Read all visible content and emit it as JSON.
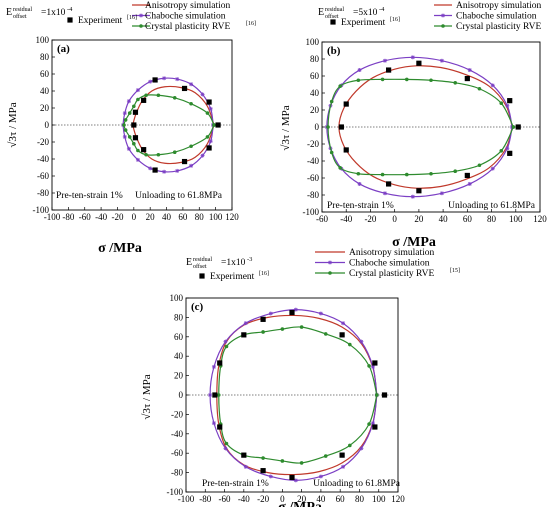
{
  "chart_data": [
    {
      "type": "line",
      "panel_label": "(a)",
      "offset_label": {
        "base": "E",
        "sup": "residual",
        "sub": "offset",
        "value": "=1x10",
        "exp": "-4"
      },
      "xlabel": "σ /MPa",
      "ylabel": "√3τ / MPa",
      "xlim": [
        -100,
        120
      ],
      "ylim": [
        -100,
        100
      ],
      "xticks": [
        "-100",
        "-80",
        "-60",
        "-40",
        "-20",
        "0",
        "20",
        "40",
        "60",
        "80",
        "100",
        "120"
      ],
      "yticks": [
        "-100",
        "-80",
        "-60",
        "-40",
        "-20",
        "0",
        "20",
        "40",
        "60",
        "80",
        "100"
      ],
      "annotations": [
        "Pre-ten-strain 1%",
        "Unloading to 61.8MPa"
      ],
      "legend": [
        {
          "name": "Anisotropy simulation",
          "marker": "none"
        },
        {
          "name": "Chaboche simulation",
          "marker": "star"
        },
        {
          "name": "Experiment",
          "sup": "[16]",
          "marker": "square"
        },
        {
          "name": "Crystal plasticity RVE",
          "sup": "[16]",
          "marker": "circle"
        }
      ],
      "series": [
        {
          "name": "Anisotropy simulation",
          "color": "#c0392b",
          "marker": "none",
          "x": [
            98,
            90,
            75,
            58,
            38,
            22,
            10,
            3,
            0,
            -1,
            0,
            3,
            10,
            22,
            38,
            58,
            75,
            90,
            98
          ],
          "y": [
            0,
            22,
            38,
            44,
            45,
            40,
            28,
            14,
            5,
            0,
            -5,
            -14,
            -28,
            -40,
            -45,
            -44,
            -38,
            -22,
            0
          ]
        },
        {
          "name": "Chaboche simulation",
          "color": "#7b3fc4",
          "marker": "star",
          "x": [
            97,
            94,
            84,
            70,
            53,
            37,
            20,
            5,
            -6,
            -11,
            -13,
            -11,
            -6,
            5,
            20,
            37,
            53,
            70,
            84,
            94,
            97
          ],
          "y": [
            0,
            19,
            36,
            48,
            54,
            55,
            51,
            41,
            28,
            14,
            0,
            -14,
            -28,
            -41,
            -51,
            -55,
            -54,
            -48,
            -36,
            -19,
            0
          ]
        },
        {
          "name": "Crystal plasticity RVE",
          "color": "#2e8b2e",
          "marker": "circle",
          "x": [
            98,
            90,
            70,
            50,
            30,
            15,
            5,
            0,
            -5,
            -10,
            -12,
            -10,
            -5,
            0,
            5,
            15,
            30,
            50,
            70,
            90,
            98
          ],
          "y": [
            0,
            14,
            25,
            32,
            35,
            35,
            30,
            22,
            14,
            6,
            0,
            -6,
            -14,
            -22,
            -30,
            -35,
            -35,
            -32,
            -25,
            -14,
            0
          ]
        },
        {
          "name": "Experiment",
          "color": "#000000",
          "marker": "square",
          "x": [
            103,
            92,
            62,
            26,
            12,
            2,
            0,
            2,
            12,
            26,
            62,
            92
          ],
          "y": [
            0,
            27,
            43,
            53,
            29,
            15,
            0,
            -15,
            -29,
            -53,
            -43,
            -27
          ]
        }
      ]
    },
    {
      "type": "line",
      "panel_label": "(b)",
      "offset_label": {
        "base": "E",
        "sup": "residual",
        "sub": "offset",
        "value": "=5x10",
        "exp": "-4"
      },
      "xlabel": "σ /MPa",
      "ylabel": "√3τ / MPa",
      "xlim": [
        -60,
        120
      ],
      "ylim": [
        -100,
        100
      ],
      "xticks": [
        "-60",
        "-40",
        "-20",
        "0",
        "20",
        "40",
        "60",
        "80",
        "100",
        "120"
      ],
      "yticks": [
        "-100",
        "-80",
        "-60",
        "-40",
        "-20",
        "0",
        "20",
        "40",
        "60",
        "80",
        "100"
      ],
      "annotations": [
        "Pre-ten-strain 1%",
        "Unloading to 61.8MPa"
      ],
      "legend": [
        {
          "name": "Anisotropy simulation",
          "marker": "none"
        },
        {
          "name": "Chaboche simulation",
          "marker": "star"
        },
        {
          "name": "Experiment",
          "sup": "[16]",
          "marker": "square"
        },
        {
          "name": "Crystal plasticity RVE",
          "sup": "[16]",
          "marker": "circle"
        }
      ],
      "series": [
        {
          "name": "Anisotropy simulation",
          "color": "#c0392b",
          "marker": "none",
          "x": [
            97,
            92,
            78,
            58,
            38,
            18,
            0,
            -18,
            -32,
            -42,
            -46,
            -42,
            -32,
            -18,
            0,
            18,
            38,
            58,
            78,
            92,
            97
          ],
          "y": [
            0,
            25,
            48,
            62,
            70,
            72,
            68,
            58,
            42,
            22,
            0,
            -22,
            -42,
            -58,
            -68,
            -72,
            -70,
            -62,
            -48,
            -25,
            0
          ]
        },
        {
          "name": "Chaboche simulation",
          "color": "#7b3fc4",
          "marker": "star",
          "x": [
            97,
            93,
            81,
            62,
            39,
            15,
            -8,
            -29,
            -44,
            -53,
            -56,
            -53,
            -44,
            -29,
            -8,
            15,
            39,
            62,
            81,
            93,
            97
          ],
          "y": [
            0,
            25,
            49,
            67,
            78,
            82,
            78,
            67,
            49,
            25,
            0,
            -25,
            -49,
            -67,
            -78,
            -82,
            -78,
            -67,
            -49,
            -25,
            0
          ]
        },
        {
          "name": "Crystal plasticity RVE",
          "color": "#2e8b2e",
          "marker": "circle",
          "x": [
            98,
            88,
            70,
            50,
            30,
            10,
            -10,
            -30,
            -45,
            -52,
            -55,
            -52,
            -45,
            -30,
            -10,
            10,
            30,
            50,
            70,
            88,
            98
          ],
          "y": [
            0,
            28,
            45,
            52,
            55,
            56,
            56,
            55,
            48,
            30,
            0,
            -30,
            -48,
            -55,
            -56,
            -56,
            -55,
            -52,
            -45,
            -28,
            0
          ]
        },
        {
          "name": "Experiment",
          "color": "#000000",
          "marker": "square",
          "x": [
            102,
            95,
            60,
            20,
            -5,
            -40,
            -44,
            -40,
            -5,
            20,
            60,
            95
          ],
          "y": [
            0,
            31,
            57,
            75,
            67,
            27,
            0,
            -27,
            -67,
            -75,
            -57,
            -31
          ]
        }
      ]
    },
    {
      "type": "line",
      "panel_label": "(c)",
      "offset_label": {
        "base": "E",
        "sup": "residual",
        "sub": "offset",
        "value": "=1x10",
        "exp": "-3"
      },
      "xlabel": "σ /MPa",
      "ylabel": "√3τ / MPa",
      "xlim": [
        -100,
        120
      ],
      "ylim": [
        -100,
        100
      ],
      "xticks": [
        "-100",
        "-80",
        "-60",
        "-40",
        "-20",
        "0",
        "20",
        "40",
        "60",
        "80",
        "100",
        "120"
      ],
      "yticks": [
        "-100",
        "-80",
        "-60",
        "-40",
        "-20",
        "0",
        "20",
        "40",
        "60",
        "80",
        "100"
      ],
      "annotations": [
        "Pre-ten-strain 1%",
        "Unloading to 61.8MPa"
      ],
      "legend": [
        {
          "name": "Anisotropy simulation",
          "marker": "none"
        },
        {
          "name": "Chaboche simulation",
          "marker": "star"
        },
        {
          "name": "Experiment",
          "sup": "[16]",
          "marker": "square"
        },
        {
          "name": "Crystal plasticity RVE",
          "sup": "[15]",
          "marker": "circle"
        }
      ],
      "series": [
        {
          "name": "Anisotropy simulation",
          "color": "#c0392b",
          "marker": "none",
          "x": [
            98,
            94,
            82,
            62,
            38,
            12,
            -15,
            -40,
            -58,
            -66,
            -68,
            -66,
            -58,
            -40,
            -15,
            12,
            38,
            62,
            82,
            94,
            98
          ],
          "y": [
            0,
            28,
            53,
            70,
            79,
            82,
            80,
            72,
            55,
            30,
            0,
            -30,
            -55,
            -72,
            -80,
            -82,
            -79,
            -70,
            -53,
            -28,
            0
          ]
        },
        {
          "name": "Chaboche simulation",
          "color": "#7b3fc4",
          "marker": "star",
          "x": [
            98,
            94,
            82,
            63,
            40,
            14,
            -12,
            -38,
            -59,
            -71,
            -75,
            -71,
            -59,
            -38,
            -12,
            14,
            40,
            63,
            82,
            94,
            98
          ],
          "y": [
            0,
            29,
            55,
            74,
            84,
            88,
            84,
            74,
            55,
            29,
            0,
            -29,
            -55,
            -74,
            -84,
            -88,
            -84,
            -74,
            -55,
            -29,
            0
          ]
        },
        {
          "name": "Crystal plasticity RVE",
          "color": "#2e8b2e",
          "marker": "circle",
          "x": [
            98,
            90,
            70,
            45,
            20,
            0,
            -20,
            -40,
            -58,
            -64,
            -66,
            -64,
            -58,
            -40,
            -20,
            0,
            20,
            45,
            70,
            90,
            98
          ],
          "y": [
            0,
            30,
            52,
            63,
            70,
            68,
            65,
            62,
            50,
            30,
            0,
            -30,
            -50,
            -62,
            -65,
            -68,
            -70,
            -63,
            -52,
            -30,
            0
          ]
        },
        {
          "name": "Experiment",
          "color": "#000000",
          "marker": "square",
          "x": [
            106,
            96,
            62,
            10,
            -20,
            -40,
            -65,
            -70,
            -65,
            -40,
            -20,
            10,
            62,
            96
          ],
          "y": [
            0,
            33,
            62,
            85,
            78,
            62,
            33,
            0,
            -33,
            -62,
            -78,
            -85,
            -62,
            -33
          ]
        }
      ]
    }
  ]
}
